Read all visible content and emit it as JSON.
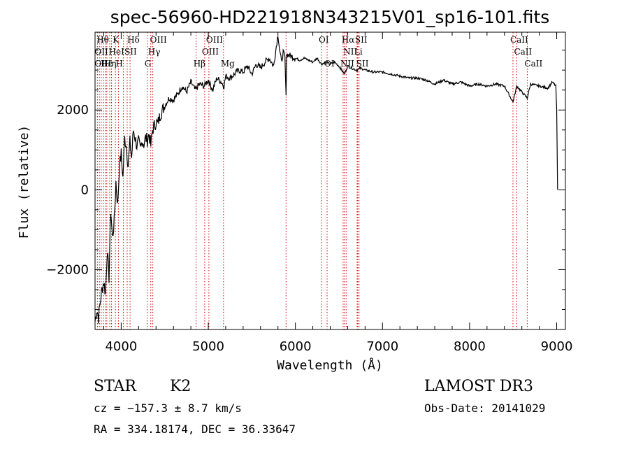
{
  "chart_data": {
    "type": "line",
    "title": "spec-56960-HD221918N343215V01_sp16-101.fits",
    "xlabel": "Wavelength (Å)",
    "ylabel": "Flux (relative)",
    "xlim": [
      3700,
      9100
    ],
    "ylim": [
      -3500,
      3950
    ],
    "x_ticks": [
      "4000",
      "5000",
      "6000",
      "7000",
      "8000",
      "9000"
    ],
    "y_ticks": [
      "−2000",
      "0",
      "2000"
    ],
    "grid": false,
    "series": [
      {
        "x": [
          3700,
          3720,
          3740,
          3760,
          3780,
          3800,
          3820,
          3840,
          3860,
          3880,
          3900,
          3920,
          3940,
          3960,
          3980,
          4000,
          4020,
          4040,
          4060,
          4080,
          4100,
          4120,
          4140,
          4160,
          4180,
          4200,
          4220,
          4240,
          4260,
          4280,
          4300,
          4320,
          4340,
          4360,
          4380,
          4400,
          4420,
          4450,
          4500,
          4550,
          4600,
          4650,
          4700,
          4750,
          4800,
          4850,
          4900,
          4950,
          5000,
          5050,
          5100,
          5150,
          5180,
          5200,
          5250,
          5300,
          5350,
          5400,
          5450,
          5500,
          5550,
          5600,
          5650,
          5700,
          5750,
          5800,
          5820,
          5840,
          5860,
          5880,
          5893,
          5900,
          5950,
          6000,
          6050,
          6100,
          6150,
          6200,
          6250,
          6300,
          6350,
          6400,
          6450,
          6500,
          6563,
          6600,
          6650,
          6700,
          6750,
          6800,
          6900,
          7000,
          7100,
          7200,
          7300,
          7400,
          7500,
          7600,
          7700,
          7800,
          7900,
          8000,
          8100,
          8200,
          8300,
          8400,
          8498,
          8542,
          8600,
          8662,
          8700,
          8800,
          8900,
          8950,
          8990,
          9000,
          9010
        ],
        "y": [
          -3300,
          -3000,
          -3200,
          -2800,
          -2500,
          -2300,
          -2600,
          -1500,
          -2200,
          -500,
          -1200,
          -800,
          200,
          -400,
          600,
          900,
          300,
          1300,
          1100,
          600,
          1200,
          800,
          1500,
          1300,
          1100,
          1200,
          1000,
          1250,
          1150,
          1300,
          1250,
          1400,
          1100,
          1500,
          1600,
          1700,
          1650,
          1900,
          2100,
          2300,
          2250,
          2400,
          2600,
          2450,
          2700,
          2500,
          2650,
          2600,
          2750,
          2500,
          2800,
          2700,
          2600,
          2850,
          2800,
          2900,
          3000,
          2950,
          3100,
          2900,
          3150,
          3050,
          3200,
          3300,
          3100,
          3900,
          3500,
          3200,
          3450,
          3300,
          2300,
          3400,
          3350,
          3300,
          3250,
          3300,
          3250,
          3200,
          3300,
          3150,
          3200,
          3150,
          3200,
          3100,
          2900,
          3100,
          3050,
          3000,
          3050,
          3000,
          2950,
          2950,
          2900,
          2850,
          2800,
          2800,
          2750,
          2650,
          2750,
          2650,
          2700,
          2600,
          2650,
          2600,
          2650,
          2600,
          2200,
          2600,
          2450,
          2300,
          2650,
          2600,
          2550,
          2700,
          2600,
          2000,
          0
        ]
      }
    ],
    "line_markers": [
      {
        "wave": 3727,
        "label": ""
      },
      {
        "wave": 3750,
        "label": ""
      },
      {
        "wave": 3771,
        "label": ""
      },
      {
        "wave": 3798,
        "label": ""
      },
      {
        "wave": 3820,
        "label": ""
      },
      {
        "wave": 3835,
        "label": ""
      },
      {
        "wave": 3869,
        "label": ""
      },
      {
        "wave": 3889,
        "label": ""
      },
      {
        "wave": 3934,
        "label": ""
      },
      {
        "wave": 3968,
        "label": ""
      },
      {
        "wave": 4026,
        "label": ""
      },
      {
        "wave": 4069,
        "label": ""
      },
      {
        "wave": 4102,
        "label": ""
      },
      {
        "wave": 4300,
        "label": ""
      },
      {
        "wave": 4340,
        "label": ""
      },
      {
        "wave": 4363,
        "label": ""
      },
      {
        "wave": 4861,
        "label": ""
      },
      {
        "wave": 4959,
        "label": ""
      },
      {
        "wave": 5007,
        "label": ""
      },
      {
        "wave": 5175,
        "label": ""
      },
      {
        "wave": 5893,
        "label": ""
      },
      {
        "wave": 6300,
        "label": ""
      },
      {
        "wave": 6364,
        "label": ""
      },
      {
        "wave": 6548,
        "label": ""
      },
      {
        "wave": 6563,
        "label": ""
      },
      {
        "wave": 6583,
        "label": ""
      },
      {
        "wave": 6708,
        "label": ""
      },
      {
        "wave": 6716,
        "label": ""
      },
      {
        "wave": 6731,
        "label": ""
      },
      {
        "wave": 8498,
        "label": ""
      },
      {
        "wave": 8542,
        "label": ""
      },
      {
        "wave": 8662,
        "label": ""
      }
    ],
    "line_labels": [
      {
        "text": "Hθ",
        "wave": 3750,
        "row": 1
      },
      {
        "text": "K",
        "wave": 3934,
        "row": 1
      },
      {
        "text": "Hδ",
        "wave": 4102,
        "row": 1
      },
      {
        "text": "OIII",
        "wave": 4363,
        "row": 1
      },
      {
        "text": "OIII",
        "wave": 5007,
        "row": 1
      },
      {
        "text": "OI",
        "wave": 6300,
        "row": 1
      },
      {
        "text": "Hα",
        "wave": 6563,
        "row": 1
      },
      {
        "text": "SII",
        "wave": 6716,
        "row": 1
      },
      {
        "text": "CaII",
        "wave": 8498,
        "row": 1
      },
      {
        "text": "OII",
        "wave": 3727,
        "row": 2
      },
      {
        "text": "HeI",
        "wave": 3889,
        "row": 2
      },
      {
        "text": "SII",
        "wave": 4069,
        "row": 2
      },
      {
        "text": "Hγ",
        "wave": 4340,
        "row": 2
      },
      {
        "text": "OIII",
        "wave": 4959,
        "row": 2
      },
      {
        "text": "NII",
        "wave": 6583,
        "row": 2
      },
      {
        "text": "Li",
        "wave": 6708,
        "row": 2
      },
      {
        "text": "CaII",
        "wave": 8542,
        "row": 2
      },
      {
        "text": "OII",
        "wave": 3727,
        "row": 3
      },
      {
        "text": "Hε",
        "wave": 3798,
        "row": 3
      },
      {
        "text": "Hη",
        "wave": 3835,
        "row": 3
      },
      {
        "text": "H",
        "wave": 3968,
        "row": 3
      },
      {
        "text": "G",
        "wave": 4300,
        "row": 3
      },
      {
        "text": "Hβ",
        "wave": 4861,
        "row": 3
      },
      {
        "text": "Mg",
        "wave": 5175,
        "row": 3
      },
      {
        "text": "OI",
        "wave": 6364,
        "row": 3
      },
      {
        "text": "NII",
        "wave": 6548,
        "row": 3
      },
      {
        "text": "SII",
        "wave": 6731,
        "row": 3
      },
      {
        "text": "CaII",
        "wave": 8662,
        "row": 3
      }
    ]
  },
  "info": {
    "class": "STAR",
    "subclass": "K2",
    "survey": "LAMOST DR3",
    "cz": "cz = −157.3 ± 8.7 km/s",
    "obs_date": "Obs-Date: 20141029",
    "coords": "RA = 334.18174, DEC =  36.33647"
  }
}
